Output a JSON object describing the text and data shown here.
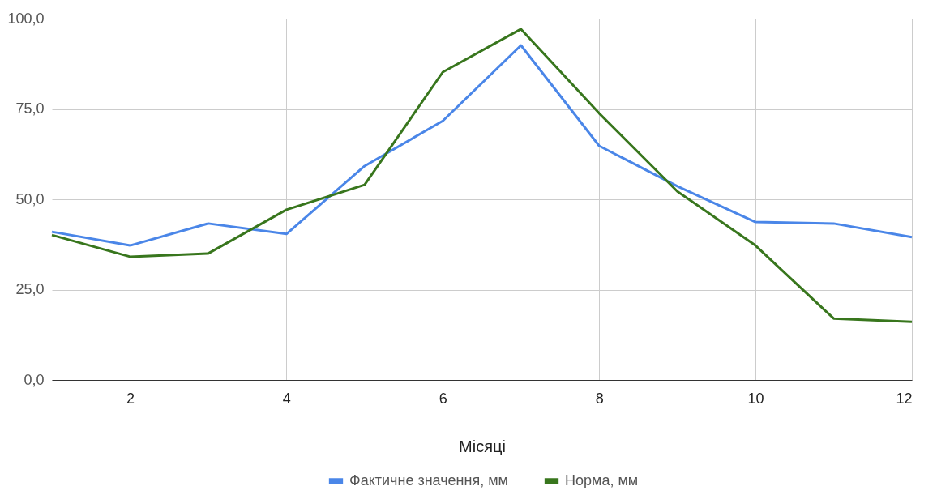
{
  "chart_data": {
    "type": "line",
    "xlabel": "Місяці",
    "x": [
      1,
      2,
      3,
      4,
      5,
      6,
      7,
      8,
      9,
      10,
      11,
      12
    ],
    "series": [
      {
        "name": "Фактичне значення, мм",
        "color": "#4a86e8",
        "values": [
          41.0,
          37.2,
          43.3,
          40.4,
          59.2,
          71.7,
          92.6,
          64.8,
          53.6,
          43.7,
          43.3,
          39.5
        ]
      },
      {
        "name": "Норма, мм",
        "color": "#38761d",
        "values": [
          40.1,
          34.1,
          35.0,
          47.1,
          54.0,
          85.2,
          97.1,
          73.8,
          52.2,
          37.2,
          17.0,
          16.1
        ]
      }
    ],
    "xlim": [
      1,
      12
    ],
    "xticks": [
      2,
      4,
      6,
      8,
      10,
      12
    ],
    "ylim": [
      0,
      100
    ],
    "yticks": [
      {
        "value": 0,
        "label": "0,0"
      },
      {
        "value": 25,
        "label": "25,0"
      },
      {
        "value": 50,
        "label": "50,0"
      },
      {
        "value": 75,
        "label": "75,0"
      },
      {
        "value": 100,
        "label": "100,0"
      }
    ],
    "grid": true,
    "legend": "bottom"
  }
}
